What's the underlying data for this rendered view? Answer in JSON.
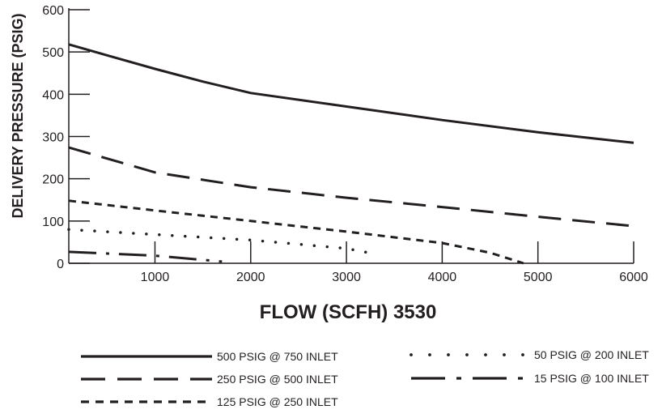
{
  "chart_data": {
    "type": "line",
    "xlabel": "FLOW (SCFH) 3530",
    "ylabel": "DELIVERY PRESSURE (PSIG)",
    "xlim": [
      100,
      6000
    ],
    "ylim": [
      0,
      600
    ],
    "x_ticks": [
      1000,
      2000,
      3000,
      4000,
      5000,
      6000
    ],
    "x_tick_labels": [
      "1000",
      "2000",
      "3000",
      "4000",
      "5000",
      "6000"
    ],
    "y_ticks": [
      0,
      100,
      200,
      300,
      400,
      500,
      600
    ],
    "y_tick_labels": [
      "0",
      "100",
      "200",
      "300",
      "400",
      "500",
      "600"
    ],
    "grid": false,
    "legend_position": "bottom",
    "series": [
      {
        "name": "500 PSIG @ 750 INLET",
        "style": "solid",
        "x": [
          100,
          500,
          1000,
          1500,
          2000,
          3000,
          4000,
          5000,
          6000
        ],
        "y": [
          518,
          492,
          460,
          430,
          403,
          371,
          339,
          310,
          285
        ]
      },
      {
        "name": "250 PSIG @ 500 INLET",
        "style": "long-dash",
        "x": [
          100,
          1000,
          2000,
          3000,
          4000,
          5000,
          6000
        ],
        "y": [
          274,
          215,
          180,
          155,
          133,
          110,
          88
        ]
      },
      {
        "name": "125 PSIG @ 250 INLET",
        "style": "short-dash",
        "x": [
          100,
          1000,
          2000,
          3000,
          4000,
          4500,
          4850
        ],
        "y": [
          148,
          125,
          100,
          75,
          48,
          25,
          0
        ]
      },
      {
        "name": "50 PSIG @ 200 INLET",
        "style": "dotted",
        "x": [
          100,
          1000,
          2000,
          3000,
          3300
        ],
        "y": [
          80,
          68,
          55,
          35,
          22
        ]
      },
      {
        "name": "15 PSIG @ 100 INLET",
        "style": "dash-dot",
        "x": [
          100,
          1000,
          1500,
          1700
        ],
        "y": [
          27,
          18,
          8,
          4
        ]
      }
    ]
  }
}
